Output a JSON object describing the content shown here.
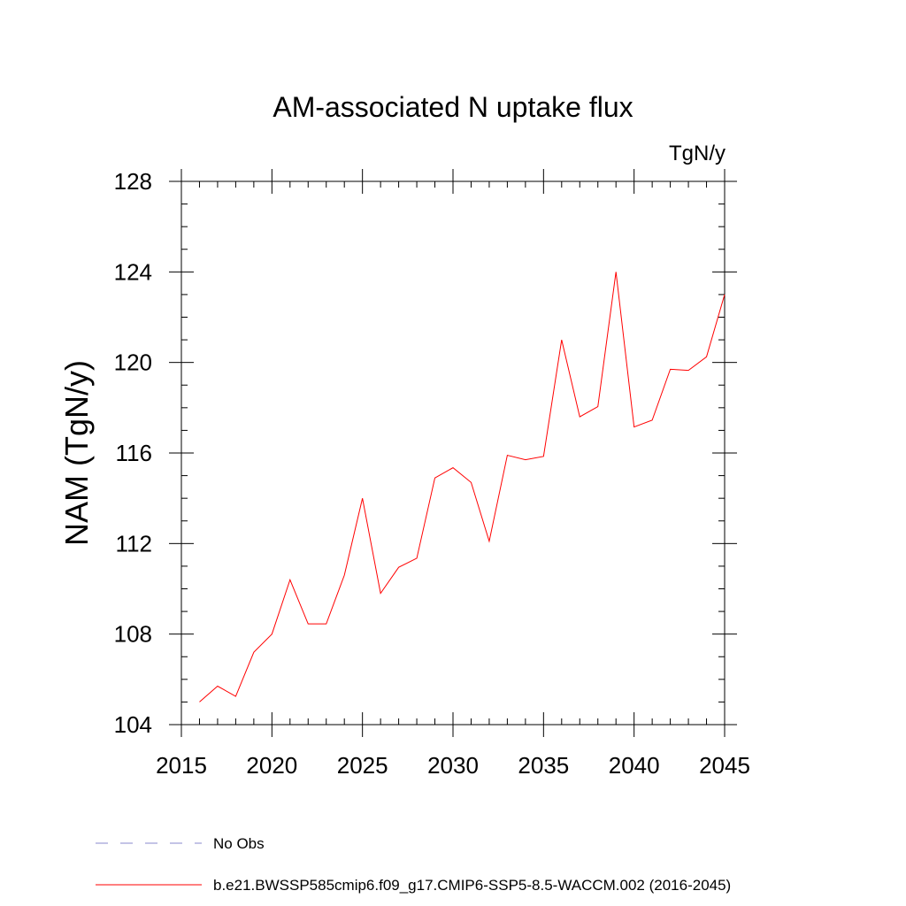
{
  "chart_data": {
    "type": "line",
    "title": "AM-associated N uptake flux",
    "units_label": "TgN/y",
    "ylabel": "NAM  (TgN/y)",
    "xlabel": "",
    "xlim": [
      2015,
      2045
    ],
    "ylim": [
      104,
      128
    ],
    "x_ticks": [
      "2015",
      "2020",
      "2025",
      "2030",
      "2035",
      "2040",
      "2045"
    ],
    "y_ticks": [
      "104",
      "108",
      "112",
      "116",
      "120",
      "124",
      "128"
    ],
    "grid": false,
    "legend_placement": "bottom",
    "series": [
      {
        "name": "b.e21.BWSSP585cmip6.f09_g17.CMIP6-SSP5-8.5-WACCM.002 (2016-2045)",
        "color": "#ff0000",
        "style": "solid",
        "x": [
          2016,
          2017,
          2018,
          2019,
          2020,
          2021,
          2022,
          2023,
          2024,
          2025,
          2026,
          2027,
          2028,
          2029,
          2030,
          2031,
          2032,
          2033,
          2034,
          2035,
          2036,
          2037,
          2038,
          2039,
          2040,
          2041,
          2042,
          2043,
          2044,
          2045
        ],
        "values": [
          105.0,
          105.7,
          105.25,
          107.2,
          108.0,
          110.4,
          108.45,
          108.45,
          110.6,
          114.0,
          109.8,
          110.95,
          111.35,
          114.9,
          115.35,
          114.7,
          112.1,
          115.9,
          115.7,
          115.85,
          121.0,
          117.6,
          118.05,
          124.0,
          117.15,
          117.45,
          119.7,
          119.65,
          120.25,
          123.0
        ]
      }
    ],
    "legend": [
      {
        "label": "No Obs",
        "color": "#8888cc",
        "style": "dashed"
      },
      {
        "label": "b.e21.BWSSP585cmip6.f09_g17.CMIP6-SSP5-8.5-WACCM.002 (2016-2045)",
        "color": "#ff0000",
        "style": "solid"
      }
    ]
  }
}
